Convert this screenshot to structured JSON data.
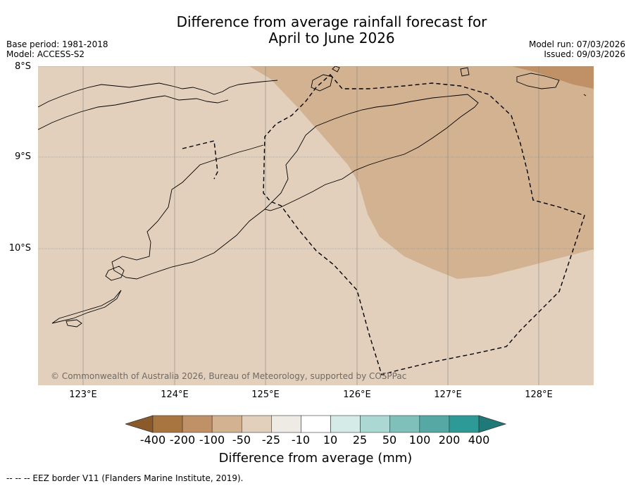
{
  "title_line1": "Difference from average rainfall forecast for",
  "title_line2": "April to June 2026",
  "base_period": "Base period: 1981-2018",
  "model": "Model: ACCESS-S2",
  "model_run": "Model run: 07/03/2026",
  "issued": "Issued: 09/03/2026",
  "lat_labels": [
    "8°S",
    "9°S",
    "10°S"
  ],
  "lon_labels": [
    "123°E",
    "124°E",
    "125°E",
    "126°E",
    "127°E",
    "128°E"
  ],
  "copyright": "© Commonwealth of Australia 2026, Bureau of Meteorology, supported by COSPPac",
  "colorbar": {
    "ticks": [
      "-400",
      "-200",
      "-100",
      "-50",
      "-25",
      "-10",
      "10",
      "25",
      "50",
      "100",
      "200",
      "400"
    ],
    "colors": [
      "#8b5a2b",
      "#a8743f",
      "#c09067",
      "#d2b290",
      "#e2d0bd",
      "#eeeae4",
      "#ffffff",
      "#d4ebe8",
      "#acd8d4",
      "#7fc0bb",
      "#56a8a5",
      "#2e9a98",
      "#1e7a78"
    ],
    "label": "Difference from average (mm)"
  },
  "footnote": "--  --  -- EEZ border V11 (Flanders Marine Institute, 2019).",
  "map": {
    "colors": {
      "background": "#e2d0bd",
      "drier_zone": "#d2b290",
      "driest_zone": "#c09067",
      "coast": "#000000",
      "grid": "#8a8580"
    },
    "categories": {
      "background": "-25 to -50 mm",
      "drier_zone": "-50 to -100 mm",
      "driest_zone": "-100 to -200 mm"
    }
  }
}
